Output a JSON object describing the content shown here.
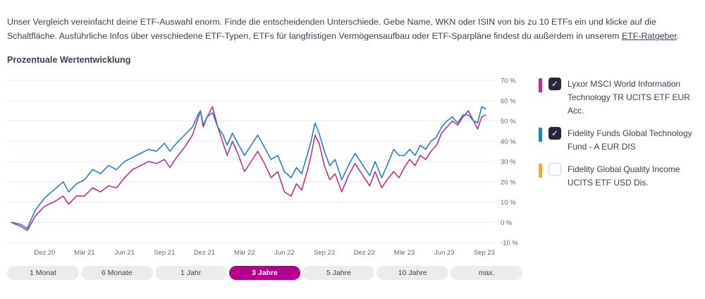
{
  "intro": {
    "text_before": "Unser Vergleich vereinfacht deine ETF-Auswahl enorm. Finde die entscheidenden Unterschiede. Gebe Name, WKN oder ISIN von bis zu 10 ETFs ein und klicke auf die Schaltfläche. Ausführliche Infos über verschiedene ETF-Typen, ETFs für langfristigen Vermögensaufbau oder ETF-Sparpläne findest du außerdem in unserem ",
    "link_label": "ETF-Ratgeber",
    "text_after": "."
  },
  "chart_data": {
    "type": "line",
    "title": "Prozentuale Wertentwicklung",
    "xlabel": "",
    "ylabel": "",
    "ylim": [
      -10,
      70
    ],
    "y_tick_step": 10,
    "y_tick_suffix": " %",
    "grid": true,
    "legend_position": "right",
    "x_unit": "months since Okt 2020",
    "x_ticks": [
      {
        "m": 2.5,
        "label": "Dez 20"
      },
      {
        "m": 5.5,
        "label": "Mär 21"
      },
      {
        "m": 8.5,
        "label": "Jun 21"
      },
      {
        "m": 11.5,
        "label": "Sep 21"
      },
      {
        "m": 14.5,
        "label": "Dez 21"
      },
      {
        "m": 17.5,
        "label": "Mär 22"
      },
      {
        "m": 20.5,
        "label": "Jun 22"
      },
      {
        "m": 23.5,
        "label": "Sep 22"
      },
      {
        "m": 26.5,
        "label": "Dez 22"
      },
      {
        "m": 29.5,
        "label": "Mär 23"
      },
      {
        "m": 32.5,
        "label": "Jun 23"
      },
      {
        "m": 35.5,
        "label": "Sep 23"
      }
    ],
    "series": [
      {
        "name": "Lyxor MSCI World Information Technology TR UCITS ETF EUR Acc.",
        "color": "#b0368c",
        "points": [
          [
            0,
            0
          ],
          [
            0.7,
            -2
          ],
          [
            1.2,
            -4
          ],
          [
            1.8,
            3
          ],
          [
            2.5,
            8
          ],
          [
            3.2,
            10
          ],
          [
            3.9,
            13
          ],
          [
            4.3,
            9
          ],
          [
            4.9,
            13
          ],
          [
            5.5,
            13
          ],
          [
            6.1,
            17
          ],
          [
            6.7,
            15
          ],
          [
            7.3,
            18
          ],
          [
            7.9,
            17
          ],
          [
            8.5,
            22
          ],
          [
            9.1,
            26
          ],
          [
            9.7,
            28
          ],
          [
            10.3,
            30
          ],
          [
            10.9,
            29
          ],
          [
            11.5,
            31
          ],
          [
            11.9,
            27
          ],
          [
            12.4,
            32
          ],
          [
            13.0,
            37
          ],
          [
            13.6,
            43
          ],
          [
            14.0,
            51
          ],
          [
            14.2,
            55
          ],
          [
            14.4,
            47
          ],
          [
            14.7,
            52
          ],
          [
            15.1,
            57
          ],
          [
            15.5,
            47
          ],
          [
            15.9,
            39
          ],
          [
            16.2,
            33
          ],
          [
            16.6,
            40
          ],
          [
            17.0,
            34
          ],
          [
            17.5,
            25
          ],
          [
            18.0,
            30
          ],
          [
            18.5,
            35
          ],
          [
            19.0,
            29
          ],
          [
            19.5,
            22
          ],
          [
            20.0,
            25
          ],
          [
            20.5,
            15
          ],
          [
            21.0,
            13
          ],
          [
            21.4,
            19
          ],
          [
            21.8,
            16
          ],
          [
            22.2,
            25
          ],
          [
            22.5,
            33
          ],
          [
            22.8,
            43
          ],
          [
            23.1,
            39
          ],
          [
            23.5,
            28
          ],
          [
            23.9,
            21
          ],
          [
            24.3,
            24
          ],
          [
            24.8,
            15
          ],
          [
            25.3,
            23
          ],
          [
            25.8,
            29
          ],
          [
            26.2,
            25
          ],
          [
            26.5,
            22
          ],
          [
            26.9,
            18
          ],
          [
            27.3,
            25
          ],
          [
            27.8,
            17
          ],
          [
            28.2,
            21
          ],
          [
            28.7,
            25
          ],
          [
            29.1,
            22
          ],
          [
            29.5,
            27
          ],
          [
            29.9,
            31
          ],
          [
            30.3,
            28
          ],
          [
            30.7,
            33
          ],
          [
            31.1,
            31
          ],
          [
            31.5,
            35
          ],
          [
            31.9,
            38
          ],
          [
            32.3,
            44
          ],
          [
            32.7,
            47
          ],
          [
            33.1,
            50
          ],
          [
            33.5,
            48
          ],
          [
            33.9,
            52
          ],
          [
            34.3,
            55
          ],
          [
            34.7,
            50
          ],
          [
            35.0,
            46
          ],
          [
            35.3,
            52
          ],
          [
            35.6,
            53
          ]
        ]
      },
      {
        "name": "Fidelity Funds Global Technology Fund - A EUR DIS",
        "color": "#2e7cb8",
        "points": [
          [
            0,
            0
          ],
          [
            0.7,
            -1
          ],
          [
            1.2,
            -3
          ],
          [
            1.8,
            6
          ],
          [
            2.5,
            12
          ],
          [
            3.2,
            16
          ],
          [
            3.9,
            20
          ],
          [
            4.3,
            15
          ],
          [
            4.9,
            19
          ],
          [
            5.5,
            21
          ],
          [
            6.1,
            26
          ],
          [
            6.7,
            24
          ],
          [
            7.3,
            28
          ],
          [
            7.9,
            26
          ],
          [
            8.5,
            30
          ],
          [
            9.1,
            32
          ],
          [
            9.7,
            34
          ],
          [
            10.3,
            36
          ],
          [
            10.9,
            35
          ],
          [
            11.5,
            39
          ],
          [
            11.9,
            35
          ],
          [
            12.4,
            39
          ],
          [
            13.0,
            43
          ],
          [
            13.6,
            47
          ],
          [
            14.0,
            53
          ],
          [
            14.2,
            55
          ],
          [
            14.4,
            48
          ],
          [
            14.7,
            52
          ],
          [
            15.1,
            54
          ],
          [
            15.5,
            47
          ],
          [
            15.9,
            43
          ],
          [
            16.2,
            38
          ],
          [
            16.6,
            44
          ],
          [
            17.0,
            39
          ],
          [
            17.5,
            33
          ],
          [
            18.0,
            38
          ],
          [
            18.5,
            43
          ],
          [
            19.0,
            37
          ],
          [
            19.5,
            31
          ],
          [
            20.0,
            33
          ],
          [
            20.5,
            25
          ],
          [
            21.0,
            22
          ],
          [
            21.4,
            27
          ],
          [
            21.8,
            24
          ],
          [
            22.2,
            33
          ],
          [
            22.5,
            40
          ],
          [
            22.8,
            49
          ],
          [
            23.1,
            44
          ],
          [
            23.5,
            35
          ],
          [
            23.9,
            28
          ],
          [
            24.3,
            31
          ],
          [
            24.8,
            21
          ],
          [
            25.3,
            28
          ],
          [
            25.8,
            34
          ],
          [
            26.2,
            30
          ],
          [
            26.5,
            27
          ],
          [
            26.9,
            23
          ],
          [
            27.3,
            30
          ],
          [
            27.8,
            22
          ],
          [
            28.2,
            28
          ],
          [
            28.7,
            36
          ],
          [
            29.1,
            33
          ],
          [
            29.5,
            33
          ],
          [
            29.9,
            36
          ],
          [
            30.3,
            33
          ],
          [
            30.7,
            38
          ],
          [
            31.1,
            36
          ],
          [
            31.5,
            40
          ],
          [
            31.9,
            42
          ],
          [
            32.3,
            47
          ],
          [
            32.7,
            50
          ],
          [
            33.1,
            52
          ],
          [
            33.5,
            49
          ],
          [
            33.9,
            53
          ],
          [
            34.3,
            53
          ],
          [
            34.7,
            50
          ],
          [
            35.0,
            49
          ],
          [
            35.3,
            57
          ],
          [
            35.6,
            56
          ]
        ]
      }
    ]
  },
  "legend": {
    "items": [
      {
        "label": "Lyxor MSCI World Information Technology TR UCITS ETF EUR Acc.",
        "color": "#b0368c",
        "checked": true
      },
      {
        "label": "Fidelity Funds Global Technology Fund - A EUR DIS",
        "color": "#2e7cb8",
        "checked": true
      },
      {
        "label": "Fidelity Global Quality Income UCITS ETF USD Dis.",
        "color": "#f2a740",
        "checked": false
      }
    ]
  },
  "range_buttons": [
    {
      "label": "1 Monat",
      "selected": false
    },
    {
      "label": "6 Monate",
      "selected": false
    },
    {
      "label": "1 Jahr",
      "selected": false
    },
    {
      "label": "3 Jahre",
      "selected": true
    },
    {
      "label": "5 Jahre",
      "selected": false
    },
    {
      "label": "10 Jahre",
      "selected": false
    },
    {
      "label": "max.",
      "selected": false
    }
  ],
  "colors": {
    "accent": "#b4008c",
    "text": "#3c3c55",
    "gridline": "#e8e8ec",
    "axis_label": "#63637a",
    "checkbox_checked": "#26263c"
  }
}
